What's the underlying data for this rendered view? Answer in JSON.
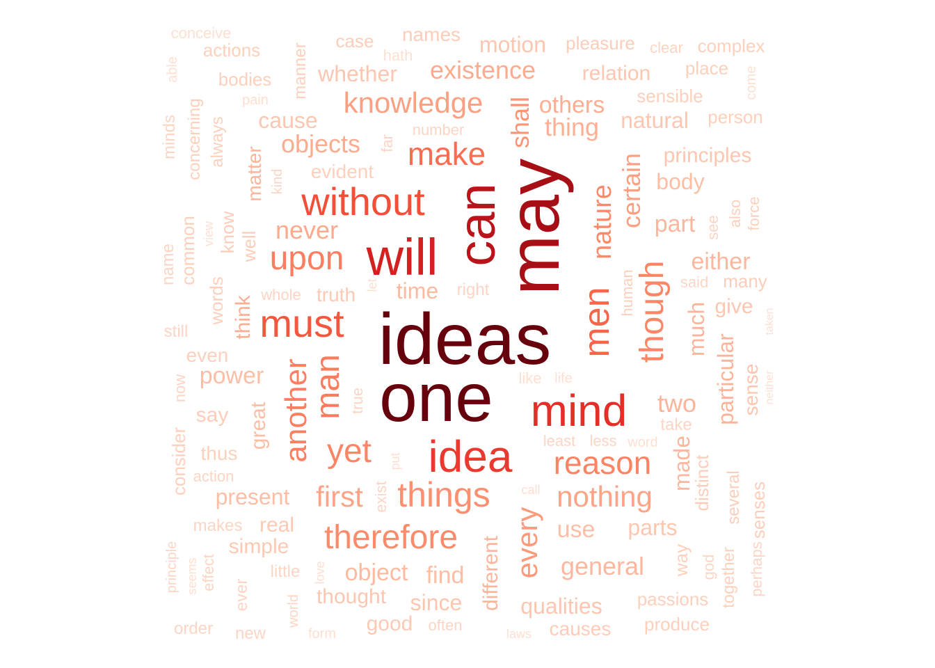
{
  "cloud": {
    "words": [
      {
        "text": "ideas",
        "color": "#67000d"
      },
      {
        "text": "one",
        "color": "#67000d"
      },
      {
        "text": "may",
        "color": "#a50f15"
      },
      {
        "text": "can",
        "color": "#b81419"
      },
      {
        "text": "will",
        "color": "#d42020"
      },
      {
        "text": "mind",
        "color": "#e32f27"
      },
      {
        "text": "idea",
        "color": "#ea3a2f"
      },
      {
        "text": "without",
        "color": "#f34e38"
      },
      {
        "text": "must",
        "color": "#f5573e"
      },
      {
        "text": "men",
        "color": "#f7654b"
      },
      {
        "text": "make",
        "color": "#f96e50"
      },
      {
        "text": "upon",
        "color": "#fa7e5f"
      },
      {
        "text": "man",
        "color": "#fb7c5c"
      },
      {
        "text": "though",
        "color": "#fb8666"
      },
      {
        "text": "reason",
        "color": "#fb8464"
      },
      {
        "text": "another",
        "color": "#fb7f60"
      },
      {
        "text": "nature",
        "color": "#fb8a6a"
      },
      {
        "text": "yet",
        "color": "#fb8666"
      },
      {
        "text": "things",
        "color": "#fc8f6f"
      },
      {
        "text": "therefore",
        "color": "#fc8b6b"
      },
      {
        "text": "shall",
        "color": "#fc9474"
      },
      {
        "text": "knowledge",
        "color": "#fca082"
      },
      {
        "text": "certain",
        "color": "#fc9e80"
      },
      {
        "text": "nothing",
        "color": "#fca486"
      },
      {
        "text": "every",
        "color": "#fc9a7b"
      },
      {
        "text": "first",
        "color": "#fca486"
      },
      {
        "text": "never",
        "color": "#fcaa8d"
      },
      {
        "text": "objects",
        "color": "#fcab8f"
      },
      {
        "text": "existence",
        "color": "#fcab8f"
      },
      {
        "text": "think",
        "color": "#fcae92"
      },
      {
        "text": "others",
        "color": "#fcae92"
      },
      {
        "text": "thing",
        "color": "#fcb096"
      },
      {
        "text": "much",
        "color": "#fcb49a"
      },
      {
        "text": "particular",
        "color": "#fcb499"
      },
      {
        "text": "matter",
        "color": "#fcb49a"
      },
      {
        "text": "two",
        "color": "#fcb49a"
      },
      {
        "text": "made",
        "color": "#fcb79e"
      },
      {
        "text": "either",
        "color": "#fcb79e"
      },
      {
        "text": "different",
        "color": "#fcb49a"
      },
      {
        "text": "part",
        "color": "#fcb79e"
      },
      {
        "text": "general",
        "color": "#fcb79e"
      },
      {
        "text": "object",
        "color": "#fcbba1"
      },
      {
        "text": "time",
        "color": "#fcbba1"
      },
      {
        "text": "power",
        "color": "#fcbea5"
      },
      {
        "text": "great",
        "color": "#fcbea5"
      },
      {
        "text": "use",
        "color": "#fcbea5"
      },
      {
        "text": "present",
        "color": "#fcbea5"
      },
      {
        "text": "body",
        "color": "#fcbea5"
      },
      {
        "text": "find",
        "color": "#fcbea5"
      },
      {
        "text": "qualities",
        "color": "#fdc6b0"
      },
      {
        "text": "cause",
        "color": "#fdc6b0"
      },
      {
        "text": "natural",
        "color": "#fdc6b0"
      },
      {
        "text": "whether",
        "color": "#fdc6b0"
      },
      {
        "text": "relation",
        "color": "#fdc6b0"
      },
      {
        "text": "principles",
        "color": "#fdc6b0"
      },
      {
        "text": "motion",
        "color": "#fdc6b0"
      },
      {
        "text": "since",
        "color": "#fdc6b0"
      },
      {
        "text": "thought",
        "color": "#fdc6b0"
      },
      {
        "text": "parts",
        "color": "#fdc6b0"
      },
      {
        "text": "sense",
        "color": "#fdc6b0"
      },
      {
        "text": "give",
        "color": "#fdc6b0"
      },
      {
        "text": "real",
        "color": "#fdc9b3"
      },
      {
        "text": "simple",
        "color": "#fdc9b3"
      },
      {
        "text": "truth",
        "color": "#fdc9b3"
      },
      {
        "text": "good",
        "color": "#fdc9b3"
      },
      {
        "text": "pleasure",
        "color": "#fdcdb9"
      },
      {
        "text": "names",
        "color": "#fdcdb9"
      },
      {
        "text": "senses",
        "color": "#fdcdb9"
      },
      {
        "text": "several",
        "color": "#fdcdb9"
      },
      {
        "text": "causes",
        "color": "#fdcdb9"
      },
      {
        "text": "well",
        "color": "#fdcdb9"
      },
      {
        "text": "know",
        "color": "#fdcdb9"
      },
      {
        "text": "say",
        "color": "#fdcdb9"
      },
      {
        "text": "case",
        "color": "#fdcdb9"
      },
      {
        "text": "many",
        "color": "#fdcdb9"
      },
      {
        "text": "distinct",
        "color": "#fdcdb9"
      },
      {
        "text": "human",
        "color": "#fdd0bc"
      },
      {
        "text": "way",
        "color": "#fdd0bc"
      },
      {
        "text": "passions",
        "color": "#fdd0bc"
      },
      {
        "text": "produce",
        "color": "#fdd0bc"
      },
      {
        "text": "complex",
        "color": "#fdd0bc"
      },
      {
        "text": "words",
        "color": "#fdd0bc"
      },
      {
        "text": "common",
        "color": "#fdd0bc"
      },
      {
        "text": "consider",
        "color": "#fdd0bc"
      },
      {
        "text": "thus",
        "color": "#fdd0bc"
      },
      {
        "text": "together",
        "color": "#fdd0bc"
      },
      {
        "text": "place",
        "color": "#fdd0bc"
      },
      {
        "text": "sensible",
        "color": "#fdd0bc"
      },
      {
        "text": "person",
        "color": "#fdd0bc"
      },
      {
        "text": "evident",
        "color": "#fdd0bc"
      },
      {
        "text": "bodies",
        "color": "#fdd0bc"
      },
      {
        "text": "actions",
        "color": "#fdd0bc"
      },
      {
        "text": "even",
        "color": "#fdd0bc"
      },
      {
        "text": "concerning",
        "color": "#fdd0bc"
      },
      {
        "text": "manner",
        "color": "#fdd0bc"
      },
      {
        "text": "always",
        "color": "#fdd0bc"
      },
      {
        "text": "also",
        "color": "#fdd0bc"
      },
      {
        "text": "force",
        "color": "#fdd0bc"
      },
      {
        "text": "makes",
        "color": "#fdd5c4"
      },
      {
        "text": "god",
        "color": "#fdd5c4"
      },
      {
        "text": "perhaps",
        "color": "#fdd5c4"
      },
      {
        "text": "ever",
        "color": "#fdd5c4"
      },
      {
        "text": "little",
        "color": "#fdd5c4"
      },
      {
        "text": "effect",
        "color": "#fdd5c4"
      },
      {
        "text": "minds",
        "color": "#fdd5c4"
      },
      {
        "text": "name",
        "color": "#fdd5c4"
      },
      {
        "text": "now",
        "color": "#fdd5c4"
      },
      {
        "text": "action",
        "color": "#fdd5c4"
      },
      {
        "text": "order",
        "color": "#fdd5c4"
      },
      {
        "text": "new",
        "color": "#fdd5c4"
      },
      {
        "text": "world",
        "color": "#fdd5c4"
      },
      {
        "text": "principle",
        "color": "#fdd5c4"
      },
      {
        "text": "still",
        "color": "#fdd5c4"
      },
      {
        "text": "whole",
        "color": "#fdd5c4"
      },
      {
        "text": "clear",
        "color": "#fdd5c4"
      },
      {
        "text": "far",
        "color": "#fdd5c4"
      },
      {
        "text": "kind",
        "color": "#fdd5c4"
      },
      {
        "text": "true",
        "color": "#fdd5c4"
      },
      {
        "text": "exist",
        "color": "#fdd5c4"
      },
      {
        "text": "see",
        "color": "#fdd5c4"
      },
      {
        "text": "said",
        "color": "#fdd5c4"
      },
      {
        "text": "right",
        "color": "#fdd5c4"
      },
      {
        "text": "number",
        "color": "#fdd5c4"
      },
      {
        "text": "take",
        "color": "#fdd5c4"
      },
      {
        "text": "least",
        "color": "#fdd5c4"
      },
      {
        "text": "less",
        "color": "#fdd5c4"
      },
      {
        "text": "often",
        "color": "#fdd5c4"
      },
      {
        "text": "like",
        "color": "#fee0d2"
      },
      {
        "text": "life",
        "color": "#fee0d2"
      },
      {
        "text": "put",
        "color": "#fee0d2"
      },
      {
        "text": "let",
        "color": "#fee0d2"
      },
      {
        "text": "call",
        "color": "#fee0d2"
      },
      {
        "text": "word",
        "color": "#fee0d2"
      },
      {
        "text": "hath",
        "color": "#fee0d2"
      },
      {
        "text": "pain",
        "color": "#fee0d2"
      },
      {
        "text": "able",
        "color": "#fee0d2"
      },
      {
        "text": "conceive",
        "color": "#fee0d2"
      },
      {
        "text": "come",
        "color": "#fee0d2"
      },
      {
        "text": "view",
        "color": "#fee0d2"
      },
      {
        "text": "taken",
        "color": "#fee0d2"
      },
      {
        "text": "neither",
        "color": "#fee0d2"
      },
      {
        "text": "seems",
        "color": "#fee0d2"
      },
      {
        "text": "love",
        "color": "#fee0d2"
      },
      {
        "text": "form",
        "color": "#fee0d2"
      },
      {
        "text": "laws",
        "color": "#fee0d2"
      }
    ]
  }
}
